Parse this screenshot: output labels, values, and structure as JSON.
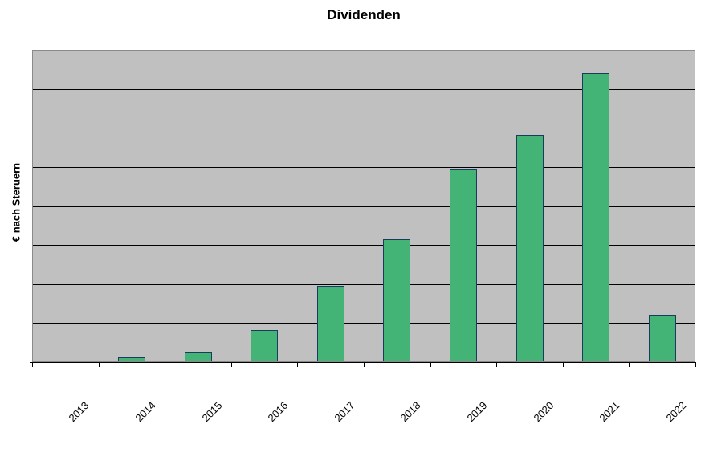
{
  "chart_data": {
    "type": "bar",
    "title": "Dividenden",
    "xlabel": "",
    "ylabel": "€ nach Steruern",
    "categories": [
      "2013",
      "2014",
      "2015",
      "2016",
      "2017",
      "2018",
      "2019",
      "2020",
      "2021",
      "2022"
    ],
    "values": [
      0,
      0.1,
      0.25,
      0.8,
      1.93,
      3.12,
      4.92,
      5.8,
      7.38,
      1.19
    ],
    "value_note": "y-axis has no tick labels; values are relative heights measured in gridline units",
    "ylim": [
      0,
      8
    ],
    "gridlines": {
      "orientation": "horizontal",
      "divisions": 8,
      "visible": true
    },
    "x_tick_count": 11,
    "x_label_rotation_deg": -45,
    "legend_position": "none",
    "colors": {
      "page_background": "#ffffff",
      "plot_background": "#c0c0c0",
      "bar_fill": "#43b376",
      "bar_border": "#1b3a60",
      "gridline": "#000000",
      "plot_border": "#8a8a8a",
      "axis_line": "#000000",
      "text": "#000000"
    }
  }
}
